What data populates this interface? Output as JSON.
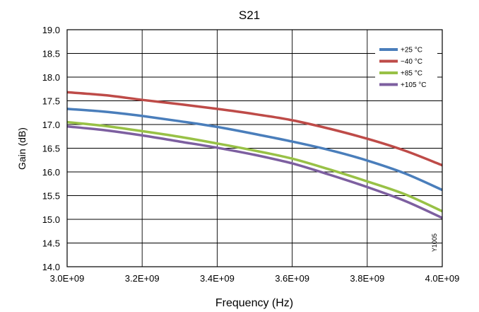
{
  "chart_data": {
    "type": "line",
    "title": "S21",
    "xlabel": "Frequency (Hz)",
    "ylabel": "Gain (dB)",
    "xlim": [
      3000000000.0,
      4000000000.0
    ],
    "ylim": [
      14.0,
      19.0
    ],
    "x_ticks": [
      3000000000.0,
      3200000000.0,
      3400000000.0,
      3600000000.0,
      3800000000.0,
      4000000000.0
    ],
    "x_tick_labels": [
      "3.0E+09",
      "3.2E+09",
      "3.4E+09",
      "3.6E+09",
      "3.8E+09",
      "4.0E+09"
    ],
    "y_ticks": [
      14.0,
      14.5,
      15.0,
      15.5,
      16.0,
      16.5,
      17.0,
      17.5,
      18.0,
      18.5,
      19.0
    ],
    "y_tick_labels": [
      "14.0",
      "14.5",
      "15.0",
      "15.5",
      "16.0",
      "16.5",
      "17.0",
      "17.5",
      "18.0",
      "18.5",
      "19.0"
    ],
    "grid": true,
    "legend_position": "top-right",
    "figure_id": "Y1005",
    "x": [
      3000000000.0,
      3100000000.0,
      3200000000.0,
      3300000000.0,
      3400000000.0,
      3500000000.0,
      3600000000.0,
      3700000000.0,
      3800000000.0,
      3900000000.0,
      4000000000.0
    ],
    "series": [
      {
        "name": "+25 °C",
        "color": "#4a7ebb",
        "values": [
          17.33,
          17.27,
          17.18,
          17.07,
          16.95,
          16.8,
          16.64,
          16.46,
          16.24,
          15.97,
          15.62
        ]
      },
      {
        "name": "−40 °C",
        "color": "#be4b48",
        "values": [
          17.68,
          17.62,
          17.52,
          17.43,
          17.33,
          17.22,
          17.09,
          16.91,
          16.7,
          16.45,
          16.14
        ]
      },
      {
        "name": "+85 °C",
        "color": "#98c146",
        "values": [
          17.05,
          16.97,
          16.86,
          16.74,
          16.6,
          16.45,
          16.28,
          16.05,
          15.8,
          15.53,
          15.17
        ]
      },
      {
        "name": "+105 °C",
        "color": "#7d5fa0",
        "values": [
          16.96,
          16.88,
          16.77,
          16.64,
          16.51,
          16.36,
          16.18,
          15.94,
          15.68,
          15.39,
          15.03
        ]
      }
    ]
  }
}
